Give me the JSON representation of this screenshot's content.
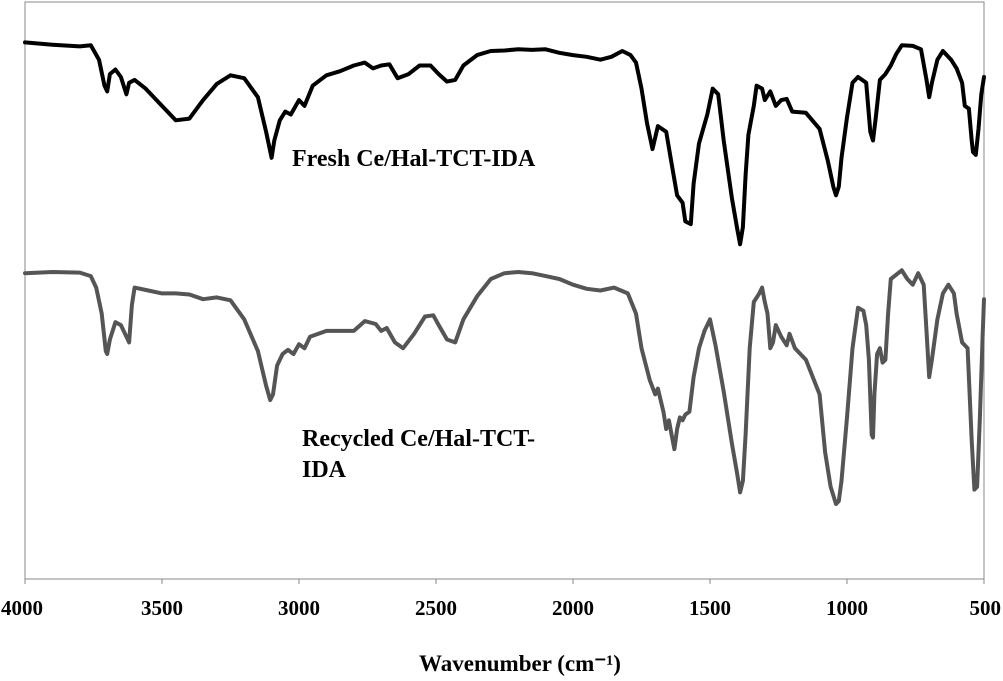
{
  "chart_data": {
    "type": "line",
    "title": "",
    "xlabel": "Wavenumber (cm⁻¹)",
    "ylabel": "",
    "xlim": [
      4000,
      500
    ],
    "x_reversed": true,
    "y_ticks_shown": false,
    "grid": false,
    "legend": "none",
    "xticks": [
      4000,
      3500,
      3000,
      2500,
      2000,
      1500,
      1000,
      500
    ],
    "xtick_labels": [
      "4000",
      "3500",
      "3000",
      "2500",
      "2000",
      "1500",
      "1000",
      "500"
    ],
    "ylim": [
      0,
      100
    ],
    "series": [
      {
        "label_lines": [
          "Fresh Ce/Hal-TCT-IDA"
        ],
        "color": "#000000",
        "points": [
          [
            4000,
            93.0
          ],
          [
            3900,
            92.6
          ],
          [
            3800,
            92.3
          ],
          [
            3760,
            92.5
          ],
          [
            3730,
            90.0
          ],
          [
            3710,
            85.5
          ],
          [
            3700,
            84.5
          ],
          [
            3690,
            87.5
          ],
          [
            3670,
            88.3
          ],
          [
            3650,
            87.0
          ],
          [
            3630,
            84.0
          ],
          [
            3620,
            86.0
          ],
          [
            3600,
            86.5
          ],
          [
            3560,
            85.0
          ],
          [
            3500,
            82.0
          ],
          [
            3450,
            79.5
          ],
          [
            3400,
            79.8
          ],
          [
            3350,
            83.0
          ],
          [
            3300,
            85.8
          ],
          [
            3250,
            87.3
          ],
          [
            3200,
            86.8
          ],
          [
            3150,
            83.5
          ],
          [
            3120,
            77.5
          ],
          [
            3100,
            73.0
          ],
          [
            3090,
            76.0
          ],
          [
            3070,
            79.5
          ],
          [
            3050,
            81.0
          ],
          [
            3030,
            80.5
          ],
          [
            3000,
            83.0
          ],
          [
            2980,
            82.0
          ],
          [
            2950,
            85.5
          ],
          [
            2900,
            87.3
          ],
          [
            2850,
            88.0
          ],
          [
            2800,
            89.0
          ],
          [
            2760,
            89.5
          ],
          [
            2730,
            88.5
          ],
          [
            2700,
            89.0
          ],
          [
            2670,
            89.2
          ],
          [
            2640,
            86.8
          ],
          [
            2600,
            87.5
          ],
          [
            2560,
            89.0
          ],
          [
            2520,
            89.0
          ],
          [
            2490,
            87.5
          ],
          [
            2460,
            86.2
          ],
          [
            2430,
            86.5
          ],
          [
            2400,
            89.0
          ],
          [
            2350,
            90.8
          ],
          [
            2300,
            91.5
          ],
          [
            2250,
            91.6
          ],
          [
            2200,
            91.8
          ],
          [
            2150,
            91.7
          ],
          [
            2100,
            91.8
          ],
          [
            2050,
            91.2
          ],
          [
            2000,
            90.8
          ],
          [
            1950,
            90.5
          ],
          [
            1900,
            90.0
          ],
          [
            1860,
            90.5
          ],
          [
            1820,
            91.5
          ],
          [
            1790,
            90.8
          ],
          [
            1770,
            89.5
          ],
          [
            1750,
            85.0
          ],
          [
            1730,
            79.0
          ],
          [
            1710,
            74.5
          ],
          [
            1690,
            78.5
          ],
          [
            1660,
            77.5
          ],
          [
            1640,
            72.0
          ],
          [
            1620,
            66.5
          ],
          [
            1600,
            65.2
          ],
          [
            1590,
            62.0
          ],
          [
            1570,
            61.5
          ],
          [
            1560,
            68.5
          ],
          [
            1540,
            75.5
          ],
          [
            1510,
            80.5
          ],
          [
            1490,
            85.0
          ],
          [
            1470,
            84.0
          ],
          [
            1450,
            76.0
          ],
          [
            1420,
            66.0
          ],
          [
            1400,
            60.5
          ],
          [
            1390,
            58.0
          ],
          [
            1380,
            61.0
          ],
          [
            1370,
            70.0
          ],
          [
            1360,
            77.0
          ],
          [
            1340,
            82.0
          ],
          [
            1330,
            85.5
          ],
          [
            1310,
            85.0
          ],
          [
            1300,
            83.0
          ],
          [
            1280,
            84.5
          ],
          [
            1260,
            82.0
          ],
          [
            1240,
            83.0
          ],
          [
            1220,
            83.2
          ],
          [
            1200,
            81.0
          ],
          [
            1150,
            80.8
          ],
          [
            1100,
            78.0
          ],
          [
            1070,
            72.5
          ],
          [
            1050,
            68.0
          ],
          [
            1040,
            66.5
          ],
          [
            1030,
            68.0
          ],
          [
            1020,
            73.0
          ],
          [
            1000,
            80.0
          ],
          [
            980,
            86.0
          ],
          [
            960,
            87.0
          ],
          [
            930,
            86.0
          ],
          [
            915,
            77.5
          ],
          [
            905,
            76.0
          ],
          [
            895,
            80.0
          ],
          [
            880,
            86.5
          ],
          [
            860,
            87.5
          ],
          [
            840,
            89.0
          ],
          [
            820,
            91.0
          ],
          [
            800,
            92.5
          ],
          [
            760,
            92.4
          ],
          [
            730,
            91.8
          ],
          [
            710,
            86.5
          ],
          [
            700,
            83.5
          ],
          [
            690,
            86.0
          ],
          [
            670,
            90.0
          ],
          [
            650,
            91.5
          ],
          [
            620,
            90.0
          ],
          [
            600,
            88.5
          ],
          [
            580,
            86.0
          ],
          [
            570,
            82.0
          ],
          [
            555,
            81.5
          ],
          [
            545,
            76.0
          ],
          [
            540,
            74.0
          ],
          [
            530,
            73.5
          ],
          [
            520,
            78.0
          ],
          [
            510,
            84.0
          ],
          [
            500,
            87.0
          ]
        ]
      },
      {
        "label_lines": [
          "Recycled Ce/Hal-TCT-",
          "IDA"
        ],
        "color": "#555555",
        "points": [
          [
            4000,
            53.0
          ],
          [
            3900,
            53.2
          ],
          [
            3800,
            53.1
          ],
          [
            3760,
            52.5
          ],
          [
            3740,
            50.5
          ],
          [
            3720,
            46.0
          ],
          [
            3705,
            39.5
          ],
          [
            3700,
            39.0
          ],
          [
            3690,
            41.5
          ],
          [
            3670,
            44.5
          ],
          [
            3650,
            44.0
          ],
          [
            3630,
            42.0
          ],
          [
            3620,
            41.0
          ],
          [
            3610,
            47.5
          ],
          [
            3600,
            50.5
          ],
          [
            3550,
            50.0
          ],
          [
            3500,
            49.5
          ],
          [
            3450,
            49.5
          ],
          [
            3400,
            49.3
          ],
          [
            3350,
            48.5
          ],
          [
            3300,
            48.8
          ],
          [
            3250,
            48.3
          ],
          [
            3200,
            45.0
          ],
          [
            3150,
            39.5
          ],
          [
            3120,
            33.5
          ],
          [
            3105,
            31.0
          ],
          [
            3095,
            32.0
          ],
          [
            3080,
            37.0
          ],
          [
            3060,
            39.0
          ],
          [
            3040,
            39.7
          ],
          [
            3020,
            39.0
          ],
          [
            3000,
            40.7
          ],
          [
            2980,
            40.0
          ],
          [
            2960,
            42.0
          ],
          [
            2900,
            43.0
          ],
          [
            2850,
            43.0
          ],
          [
            2800,
            43.0
          ],
          [
            2760,
            44.7
          ],
          [
            2720,
            44.2
          ],
          [
            2700,
            43.0
          ],
          [
            2680,
            43.5
          ],
          [
            2650,
            41.0
          ],
          [
            2620,
            40.0
          ],
          [
            2580,
            42.5
          ],
          [
            2540,
            45.5
          ],
          [
            2510,
            45.7
          ],
          [
            2490,
            44.0
          ],
          [
            2460,
            41.5
          ],
          [
            2430,
            41.0
          ],
          [
            2400,
            45.0
          ],
          [
            2350,
            49.0
          ],
          [
            2300,
            52.0
          ],
          [
            2250,
            53.0
          ],
          [
            2200,
            53.2
          ],
          [
            2150,
            53.0
          ],
          [
            2100,
            52.5
          ],
          [
            2050,
            52.0
          ],
          [
            2000,
            51.0
          ],
          [
            1950,
            50.3
          ],
          [
            1900,
            50.0
          ],
          [
            1850,
            50.5
          ],
          [
            1800,
            49.5
          ],
          [
            1770,
            46.0
          ],
          [
            1750,
            40.0
          ],
          [
            1720,
            34.5
          ],
          [
            1700,
            32.0
          ],
          [
            1690,
            33.0
          ],
          [
            1670,
            29.0
          ],
          [
            1660,
            26.0
          ],
          [
            1650,
            27.5
          ],
          [
            1640,
            25.0
          ],
          [
            1630,
            22.5
          ],
          [
            1620,
            26.0
          ],
          [
            1610,
            28.0
          ],
          [
            1600,
            27.5
          ],
          [
            1590,
            28.5
          ],
          [
            1575,
            29.0
          ],
          [
            1560,
            35.0
          ],
          [
            1540,
            40.0
          ],
          [
            1520,
            43.0
          ],
          [
            1500,
            45.0
          ],
          [
            1480,
            40.5
          ],
          [
            1450,
            32.5
          ],
          [
            1420,
            23.5
          ],
          [
            1400,
            18.0
          ],
          [
            1390,
            15.0
          ],
          [
            1380,
            17.0
          ],
          [
            1370,
            25.0
          ],
          [
            1355,
            40.0
          ],
          [
            1340,
            48.0
          ],
          [
            1320,
            49.5
          ],
          [
            1310,
            50.5
          ],
          [
            1300,
            48.0
          ],
          [
            1290,
            46.0
          ],
          [
            1280,
            40.0
          ],
          [
            1270,
            41.0
          ],
          [
            1260,
            44.0
          ],
          [
            1240,
            42.0
          ],
          [
            1220,
            40.5
          ],
          [
            1210,
            42.5
          ],
          [
            1190,
            40.0
          ],
          [
            1150,
            38.0
          ],
          [
            1100,
            32.0
          ],
          [
            1080,
            22.0
          ],
          [
            1060,
            16.0
          ],
          [
            1040,
            13.0
          ],
          [
            1030,
            13.5
          ],
          [
            1020,
            17.0
          ],
          [
            1000,
            28.0
          ],
          [
            980,
            40.0
          ],
          [
            960,
            47.0
          ],
          [
            940,
            46.5
          ],
          [
            930,
            44.0
          ],
          [
            920,
            38.0
          ],
          [
            910,
            25.0
          ],
          [
            905,
            24.5
          ],
          [
            900,
            32.0
          ],
          [
            890,
            39.0
          ],
          [
            880,
            40.0
          ],
          [
            870,
            37.5
          ],
          [
            860,
            38.0
          ],
          [
            850,
            46.0
          ],
          [
            840,
            52.0
          ],
          [
            800,
            53.5
          ],
          [
            780,
            52.0
          ],
          [
            760,
            51.0
          ],
          [
            740,
            53.0
          ],
          [
            720,
            51.0
          ],
          [
            710,
            43.0
          ],
          [
            700,
            35.0
          ],
          [
            690,
            38.0
          ],
          [
            670,
            45.0
          ],
          [
            650,
            49.5
          ],
          [
            630,
            51.0
          ],
          [
            610,
            49.5
          ],
          [
            600,
            46.0
          ],
          [
            580,
            41.0
          ],
          [
            560,
            40.0
          ],
          [
            545,
            24.0
          ],
          [
            535,
            15.5
          ],
          [
            525,
            16.0
          ],
          [
            515,
            28.0
          ],
          [
            505,
            42.0
          ],
          [
            500,
            48.5
          ]
        ]
      }
    ]
  }
}
